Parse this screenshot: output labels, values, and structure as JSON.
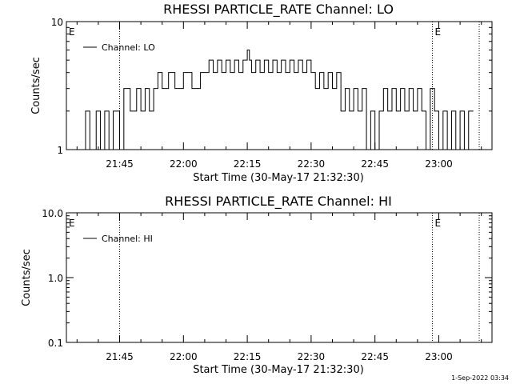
{
  "footer": {
    "timestamp": "1-Sep-2022 03:34"
  },
  "chart_data": [
    {
      "type": "line",
      "title": "RHESSI PARTICLE_RATE Channel: LO",
      "xlabel": "Start Time (30-May-17 21:32:30)",
      "ylabel": "Counts/sec",
      "y_scale": "log",
      "ylim": [
        1,
        10
      ],
      "y_ticks": [
        1,
        10
      ],
      "y_tick_labels": [
        "1",
        "10"
      ],
      "xlim": [
        "21:32:30",
        "23:12:30"
      ],
      "x_ticks": [
        "21:45",
        "22:00",
        "22:15",
        "22:30",
        "22:45",
        "23:00"
      ],
      "event_lines": [
        "21:45:00",
        "22:58:30",
        "23:09:30"
      ],
      "event_marks": [
        {
          "time": "21:32:30",
          "label": "E"
        },
        {
          "time": "22:58:30",
          "label": "E"
        }
      ],
      "legend": {
        "entry": "Channel: LO",
        "placement": "top-left"
      },
      "series": [
        {
          "name": "Channel: LO",
          "x": [
            "21:36:00",
            "21:37:00",
            "21:38:00",
            "21:39:30",
            "21:40:30",
            "21:41:30",
            "21:42:30",
            "21:43:30",
            "21:45:00",
            "21:46:00",
            "21:47:30",
            "21:49:00",
            "21:50:00",
            "21:51:00",
            "21:52:00",
            "21:53:00",
            "21:54:00",
            "21:55:00",
            "21:56:30",
            "21:58:00",
            "22:00:00",
            "22:02:00",
            "22:04:00",
            "22:06:00",
            "22:07:00",
            "22:08:00",
            "22:09:00",
            "22:10:00",
            "22:11:00",
            "22:12:00",
            "22:13:00",
            "22:14:00",
            "22:15:00",
            "22:15:30",
            "22:16:00",
            "22:17:00",
            "22:18:00",
            "22:19:00",
            "22:20:00",
            "22:21:00",
            "22:22:00",
            "22:23:00",
            "22:24:00",
            "22:25:00",
            "22:26:00",
            "22:27:00",
            "22:28:00",
            "22:29:00",
            "22:30:00",
            "22:31:00",
            "22:32:00",
            "22:33:00",
            "22:34:00",
            "22:35:00",
            "22:36:00",
            "22:37:00",
            "22:38:00",
            "22:39:00",
            "22:40:00",
            "22:41:00",
            "22:42:00",
            "22:43:00",
            "22:44:00",
            "22:45:00",
            "22:46:00",
            "22:47:00",
            "22:48:00",
            "22:49:00",
            "22:50:00",
            "22:51:00",
            "22:52:00",
            "22:53:00",
            "22:54:00",
            "22:55:00",
            "22:56:00",
            "22:57:00",
            "22:58:00",
            "22:59:00",
            "23:00:00",
            "23:01:00",
            "23:02:00",
            "23:03:00",
            "23:04:00",
            "23:05:00",
            "23:06:00",
            "23:07:00"
          ],
          "values": [
            1,
            2,
            1,
            2,
            1,
            2,
            1,
            2,
            1,
            3,
            2,
            3,
            2,
            3,
            2,
            3,
            4,
            3,
            4,
            3,
            4,
            3,
            4,
            5,
            4,
            5,
            4,
            5,
            4,
            5,
            4,
            5,
            6,
            5,
            4,
            5,
            4,
            5,
            4,
            5,
            4,
            5,
            4,
            5,
            4,
            5,
            4,
            5,
            4,
            3,
            4,
            3,
            4,
            3,
            4,
            2,
            3,
            2,
            3,
            2,
            3,
            1,
            2,
            1,
            2,
            3,
            2,
            3,
            2,
            3,
            2,
            3,
            2,
            3,
            2,
            1,
            3,
            2,
            1,
            2,
            1,
            2,
            1,
            2,
            1,
            2
          ]
        }
      ]
    },
    {
      "type": "line",
      "title": "RHESSI PARTICLE_RATE Channel: HI",
      "xlabel": "Start Time (30-May-17 21:32:30)",
      "ylabel": "Counts/sec",
      "y_scale": "log",
      "ylim": [
        0.1,
        10
      ],
      "y_ticks": [
        0.1,
        1,
        10
      ],
      "y_tick_labels": [
        "0.1",
        "1.0",
        "10.0"
      ],
      "xlim": [
        "21:32:30",
        "23:12:30"
      ],
      "x_ticks": [
        "21:45",
        "22:00",
        "22:15",
        "22:30",
        "22:45",
        "23:00"
      ],
      "event_lines": [
        "21:45:00",
        "22:58:30",
        "23:09:30"
      ],
      "event_marks": [
        {
          "time": "21:32:30",
          "label": "E"
        },
        {
          "time": "22:58:30",
          "label": "E"
        }
      ],
      "legend": {
        "entry": "Channel: HI",
        "placement": "top-left"
      },
      "series": [
        {
          "name": "Channel: HI",
          "x": [],
          "values": []
        }
      ]
    }
  ]
}
